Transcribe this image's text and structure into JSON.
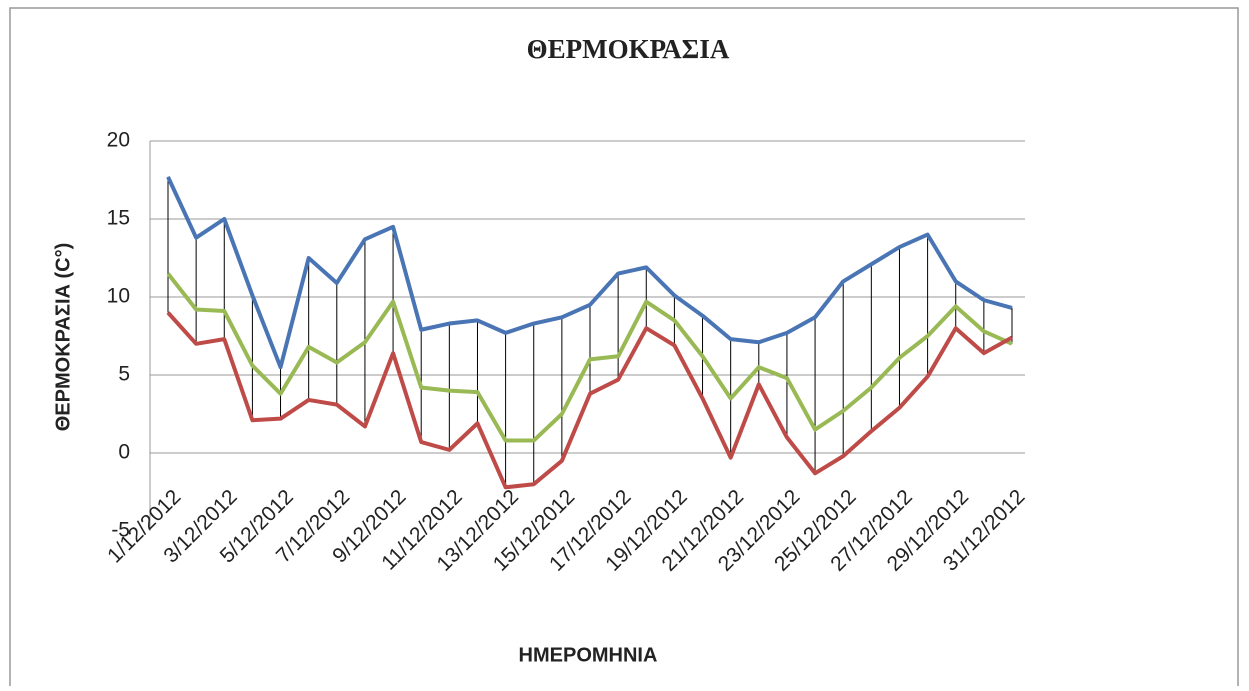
{
  "chart_data": {
    "type": "line",
    "title": "ΘΕΡΜΟΚΡΑΣΙΑ",
    "x_label": "ΗΜΕΡΟΜΗΝΙΑ",
    "y_label": "ΘΕΡΜΟΚΡΑΣΙΑ (C°)",
    "categories": [
      "1/12/2012",
      null,
      "3/12/2012",
      null,
      "5/12/2012",
      null,
      "7/12/2012",
      null,
      "9/12/2012",
      null,
      "11/12/2012",
      null,
      "13/12/2012",
      null,
      "15/12/2012",
      null,
      "17/12/2012",
      null,
      "19/12/2012",
      null,
      "21/12/2012",
      null,
      "23/12/2012",
      null,
      "25/12/2012",
      null,
      "27/12/2012",
      null,
      "29/12/2012",
      null,
      "31/12/2012"
    ],
    "series": [
      {
        "color": "#4a75b5",
        "values": [
          17.7,
          13.8,
          15.0,
          10.1,
          5.5,
          12.5,
          10.9,
          13.7,
          14.5,
          7.9,
          8.3,
          8.5,
          7.7,
          8.3,
          8.7,
          9.5,
          11.5,
          11.9,
          10.1,
          8.8,
          7.3,
          7.1,
          7.7,
          8.7,
          11.0,
          12.1,
          13.2,
          14.0,
          11.0,
          9.8,
          9.3
        ]
      },
      {
        "color": "#98b954",
        "values": [
          11.5,
          9.2,
          9.1,
          5.6,
          3.8,
          6.8,
          5.8,
          7.1,
          9.7,
          4.2,
          4.0,
          3.9,
          0.8,
          0.8,
          2.5,
          6.0,
          6.2,
          9.7,
          8.5,
          6.2,
          3.5,
          5.5,
          4.8,
          1.5,
          2.7,
          4.2,
          6.1,
          7.5,
          9.4,
          7.8,
          7.0
        ]
      },
      {
        "color": "#be4b48",
        "values": [
          9.0,
          7.0,
          7.3,
          2.1,
          2.2,
          3.4,
          3.1,
          1.7,
          6.4,
          0.7,
          0.2,
          1.9,
          -2.2,
          -2.0,
          -0.5,
          3.8,
          4.7,
          8.0,
          6.9,
          3.5,
          -0.3,
          4.4,
          1.0,
          -1.3,
          -0.2,
          1.4,
          2.9,
          4.9,
          8.0,
          6.4,
          7.4
        ]
      }
    ],
    "high_low_lines": true,
    "ylim": [
      -5,
      20
    ],
    "yticks": [
      -5,
      0,
      5,
      10,
      15,
      20
    ],
    "grid": true
  }
}
